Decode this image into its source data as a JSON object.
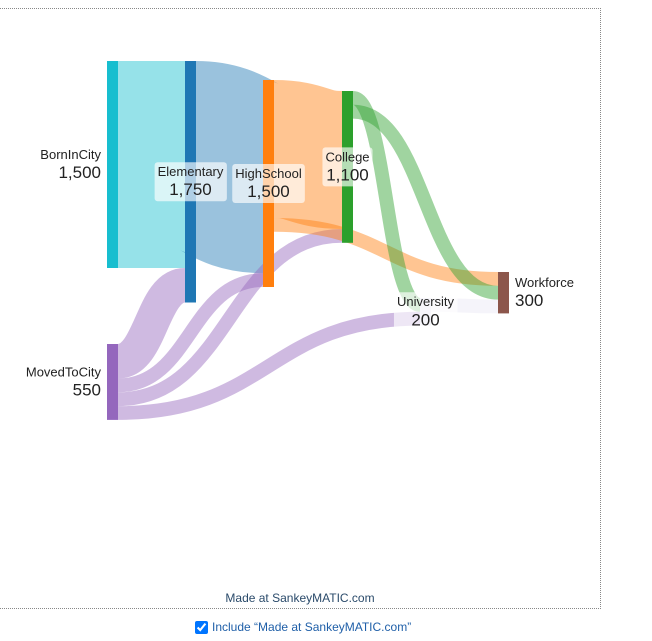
{
  "chart_data": {
    "type": "sankey",
    "nodes": {
      "names": [
        "BornInCity",
        "MovedToCity",
        "Elementary",
        "HighSchool",
        "College",
        "University",
        "Workforce"
      ],
      "values": [
        1500,
        550,
        1750,
        1500,
        1100,
        200,
        300
      ],
      "value_labels": [
        "1,500",
        "550",
        "1,750",
        "1,500",
        "1,100",
        "200",
        "300"
      ],
      "colors": [
        "#17becf",
        "#9467bd",
        "#1f77b4",
        "#ff7f0e",
        "#2ca02c",
        "#e8e6f4",
        "#8c564b"
      ]
    },
    "links": {
      "sources": [
        "BornInCity",
        "MovedToCity",
        "Elementary",
        "MovedToCity",
        "HighSchool",
        "MovedToCity",
        "HighSchool",
        "College",
        "College",
        "MovedToCity",
        "University"
      ],
      "targets": [
        "Elementary",
        "Elementary",
        "HighSchool",
        "HighSchool",
        "College",
        "College",
        "Workforce",
        "University",
        "Workforce",
        "University",
        "Workforce"
      ],
      "values": [
        1500,
        250,
        1400,
        100,
        1000,
        100,
        100,
        100,
        100,
        100,
        100
      ]
    },
    "credit": "Made at SankeyMATIC.com"
  },
  "checkbox_label": "Include “Made at SankeyMATIC.com”"
}
